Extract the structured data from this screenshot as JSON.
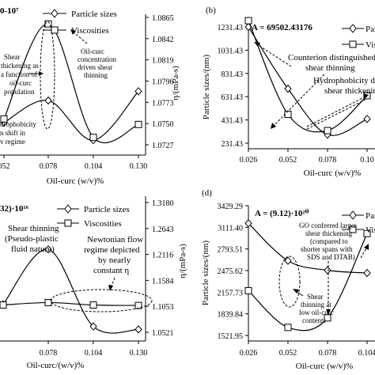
{
  "chart_data": [
    {
      "panel": "a",
      "type": "line",
      "panel_label": "",
      "parameter": "0-10⁷",
      "x_ticks": [
        "052",
        "0.078",
        "0.104",
        "0.130"
      ],
      "x": [
        0.052,
        0.078,
        0.104,
        0.13
      ],
      "xlabel": "Oil-curc (w/v)%",
      "ylabel": "",
      "y2label": "η/(mPa-s)",
      "y2_ticks": [
        "1.0865",
        "1.0842",
        "1.0819",
        "1.0796",
        "1.0773",
        "1.0750",
        "1.0727"
      ],
      "y2lim": [
        1.0727,
        1.0865
      ],
      "series": [
        {
          "name": "Particle sizes",
          "marker": "diamond",
          "values": [
            1.0751,
            1.0775,
            1.0732,
            1.0785
          ]
        },
        {
          "name": "Viscosities",
          "marker": "square",
          "values": [
            1.0755,
            1.0858,
            1.0735,
            1.0749
          ]
        }
      ],
      "annotations": [
        "Shear",
        "thickening as",
        "a function of",
        "oil-curc",
        "population",
        "Oil-curc",
        "concentration",
        "driven shear",
        "thinning",
        "drophobicity",
        "n shift in",
        "v regime"
      ]
    },
    {
      "panel": "b",
      "type": "line",
      "panel_label": "(b)",
      "parameter": "A = 69502.43176",
      "x_ticks": [
        "0.026",
        "0.052",
        "0.078",
        "0.10"
      ],
      "x": [
        0.026,
        0.052,
        0.078,
        0.104
      ],
      "xlabel": "Oil-curc (w/v)%",
      "ylabel": "Particle sizes/(nm)",
      "y_ticks": [
        "1231.43",
        "1031.43",
        "831.43",
        "631.43",
        "431.43",
        "231.43"
      ],
      "ylim": [
        231.43,
        1231.43
      ],
      "series": [
        {
          "name": "Par",
          "marker": "diamond",
          "values": [
            1231,
            700,
            305,
            440
          ]
        },
        {
          "name": "Visc",
          "marker": "square",
          "values": [
            1285,
            480,
            340,
            640
          ]
        }
      ],
      "annotations": [
        "Counterion distinguished",
        "shear thinning",
        "Hydrophobicity d",
        "shear thickenin"
      ]
    },
    {
      "panel": "c",
      "type": "line",
      "panel_label": "",
      "parameter": "32)·10¹⁶",
      "x_ticks": [
        "0.078",
        "0.104",
        "0.130"
      ],
      "x": [
        0.052,
        0.078,
        0.104,
        0.13
      ],
      "xlabel": "Oil-curc/(w/v)%",
      "ylabel": "",
      "y2label": "η/(mPa-s)",
      "y2_ticks": [
        "1.3180",
        "1.2643",
        "1.2116",
        "1.1584",
        "1.1053",
        "1.0521"
      ],
      "y2lim": [
        1.0521,
        1.318
      ],
      "series": [
        {
          "name": "Particle sizes",
          "marker": "diamond",
          "values": [
            1.109,
            1.222,
            1.064,
            1.058
          ]
        },
        {
          "name": "Viscosities",
          "marker": "square",
          "values": [
            1.108,
            1.113,
            1.108,
            1.107
          ]
        }
      ],
      "annotations": [
        "Shear thinning",
        "(Pseudo-plastic",
        "fluid nature)",
        "Newtonian flow",
        "regime depicted",
        "by nearly",
        "constant η"
      ]
    },
    {
      "panel": "d",
      "type": "line",
      "panel_label": "(d)",
      "parameter": "A = (9.12)·10²⁰",
      "x_ticks": [
        "0.026",
        "0.052",
        "0.078",
        "0.104"
      ],
      "x": [
        0.026,
        0.052,
        0.078,
        0.104
      ],
      "xlabel": "Oil-curc (w/v)%",
      "ylabel": "Particle sizes/(nm)",
      "y_ticks": [
        "3429.29",
        "3111.40",
        "2793.51",
        "2475.62",
        "2157.73",
        "1839.84",
        "1521.95"
      ],
      "ylim": [
        1521.95,
        3429.29
      ],
      "series": [
        {
          "name": "Par",
          "marker": "diamond",
          "values": [
            3170,
            2620,
            2480,
            2440
          ]
        },
        {
          "name": "Visc",
          "marker": "square",
          "values": [
            2180,
            1640,
            1780,
            3020
          ]
        }
      ],
      "annotations": [
        "GO conferred larger",
        "shear thickening",
        "(compared to",
        "shorter spans with",
        "SDS and DTAB)",
        "Shear",
        "thinning at",
        "low oil-curc",
        "contents"
      ]
    }
  ]
}
